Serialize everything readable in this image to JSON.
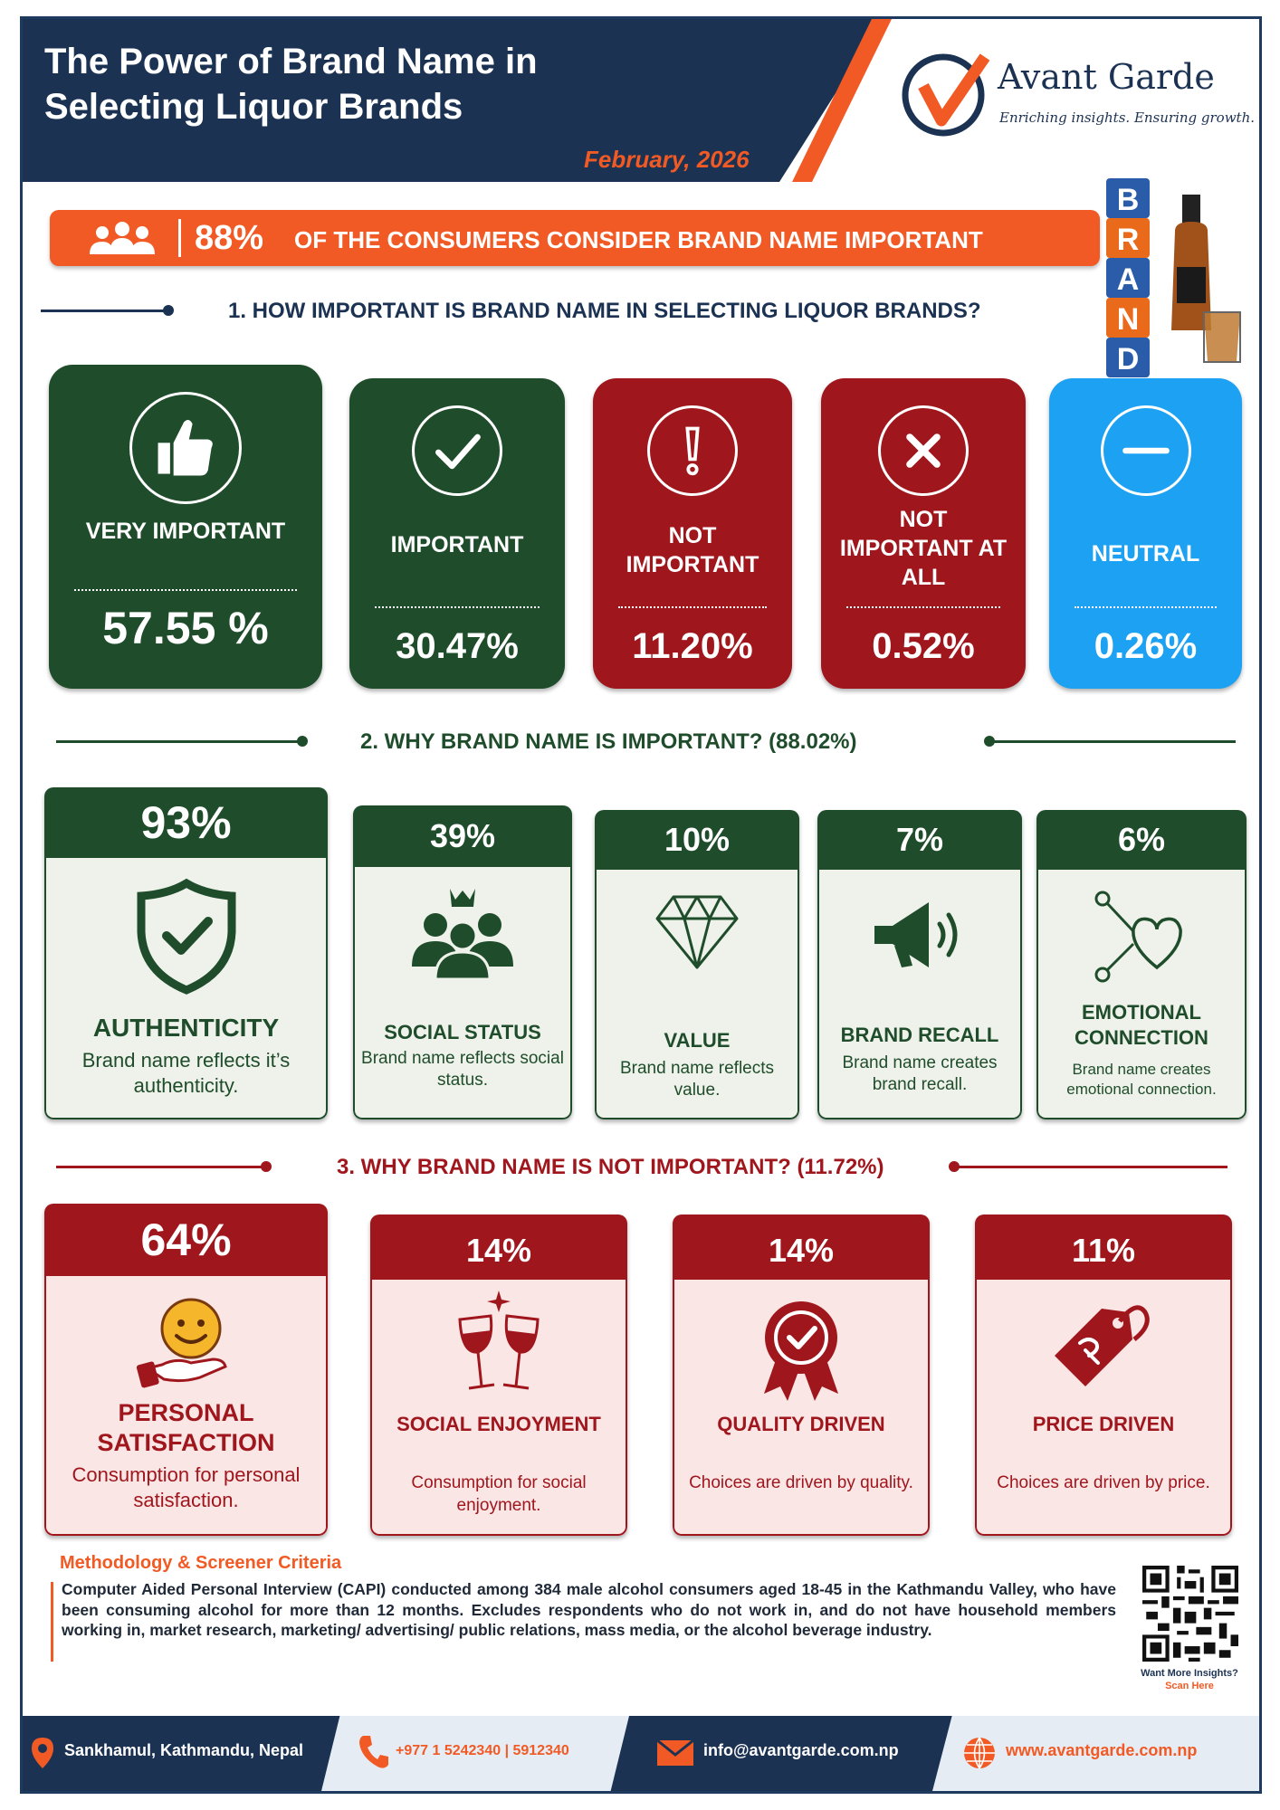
{
  "header": {
    "title": "The Power of Brand Name in Selecting Liquor Brands",
    "date": "February, 2026",
    "logo_name": "Avant Garde",
    "logo_tagline": "Enriching insights. Ensuring growth."
  },
  "banner": {
    "percent": "88%",
    "text": "OF THE CONSUMERS CONSIDER BRAND NAME IMPORTANT"
  },
  "brand_blocks": [
    "B",
    "R",
    "A",
    "N",
    "D"
  ],
  "section1": {
    "heading": "1. HOW IMPORTANT IS BRAND NAME IN SELECTING LIQUOR BRANDS?",
    "cards": [
      {
        "label": "VERY IMPORTANT",
        "value": "57.55 %",
        "icon": "thumbs-up-icon",
        "color": "#1f4d2b"
      },
      {
        "label": "IMPORTANT",
        "value": "30.47%",
        "icon": "checkmark-icon",
        "color": "#1f4d2b"
      },
      {
        "label": "NOT IMPORTANT",
        "value": "11.20%",
        "icon": "exclamation-icon",
        "color": "#a0161d"
      },
      {
        "label": "NOT IMPORTANT AT ALL",
        "value": "0.52%",
        "icon": "x-icon",
        "color": "#a0161d"
      },
      {
        "label": "NEUTRAL",
        "value": "0.26%",
        "icon": "minus-icon",
        "color": "#1da1f2"
      }
    ]
  },
  "section2": {
    "heading": "2. WHY BRAND NAME IS IMPORTANT? (88.02%)",
    "cards": [
      {
        "percent": "93%",
        "name": "AUTHENTICITY",
        "desc": "Brand name reflects it’s authenticity.",
        "icon": "shield-check-icon"
      },
      {
        "percent": "39%",
        "name": "SOCIAL STATUS",
        "desc": "Brand name reflects social status.",
        "icon": "crowd-crown-icon"
      },
      {
        "percent": "10%",
        "name": "VALUE",
        "desc": "Brand name reflects value.",
        "icon": "diamond-icon"
      },
      {
        "percent": "7%",
        "name": "BRAND RECALL",
        "desc": "Brand name creates brand recall.",
        "icon": "megaphone-icon"
      },
      {
        "percent": "6%",
        "name": "EMOTIONAL CONNECTION",
        "desc": "Brand name creates emotional connection.",
        "icon": "heart-connection-icon"
      }
    ]
  },
  "section3": {
    "heading": "3. WHY BRAND NAME IS NOT IMPORTANT? (11.72%)",
    "cards": [
      {
        "percent": "64%",
        "name": "PERSONAL SATISFACTION",
        "desc": "Consumption for personal satisfaction.",
        "icon": "smiley-hand-icon"
      },
      {
        "percent": "14%",
        "name": "SOCIAL ENJOYMENT",
        "desc": "Consumption for social enjoyment.",
        "icon": "wine-toast-icon"
      },
      {
        "percent": "14%",
        "name": "QUALITY DRIVEN",
        "desc": "Choices are driven by quality.",
        "icon": "quality-badge-icon"
      },
      {
        "percent": "11%",
        "name": "PRICE DRIVEN",
        "desc": "Choices are driven by price.",
        "icon": "price-tag-icon"
      }
    ]
  },
  "methodology": {
    "heading": "Methodology & Screener Criteria",
    "text": "Computer Aided Personal Interview (CAPI) conducted among 384 male alcohol consumers aged 18-45 in the Kathmandu Valley, who have been consuming alcohol for more than 12 months. Excludes respondents who do not work in, and do not have household members working in, market research, marketing/ advertising/ public relations, mass media, or the alcohol beverage industry.",
    "qr_caption": "Want More Insights?",
    "qr_cta": "Scan Here"
  },
  "footer": {
    "address": "Sankhamul, Kathmandu, Nepal",
    "phone": "+977 1 5242340 | 5912340",
    "email": "info@avantgarde.com.np",
    "website": "www.avantgarde.com.np"
  },
  "colors": {
    "navy": "#1b3253",
    "orange": "#f15a24",
    "green": "#1f4d2b",
    "red": "#a0161d",
    "blue": "#1da1f2"
  }
}
